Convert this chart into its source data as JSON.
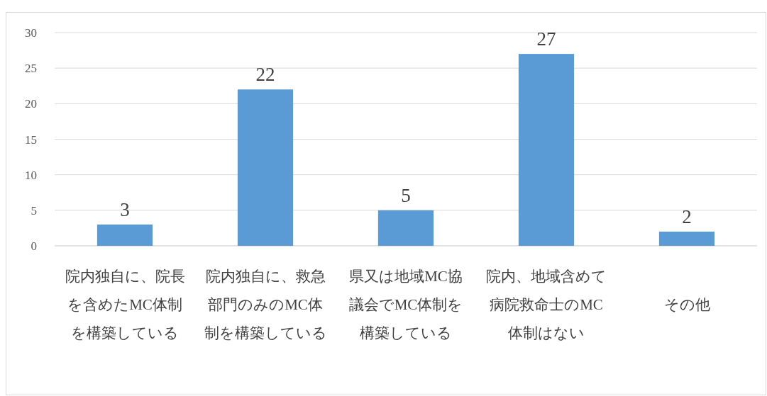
{
  "chart_data": {
    "type": "bar",
    "categories": [
      "院内独自に、院長を含めたMC体制を構築している",
      "院内独自に、救急部門のみのMC体制を構築している",
      "県又は地域MC協議会でMC体制を構築している",
      "院内、地域含めて病院救命士のMC体制はない",
      "その他"
    ],
    "values": [
      3,
      22,
      5,
      27,
      2
    ],
    "color": "#5b9bd5",
    "ylim": [
      0,
      30
    ],
    "yticks": [
      0,
      5,
      10,
      15,
      20,
      25,
      30
    ],
    "grid": "y",
    "data_labels": true
  }
}
